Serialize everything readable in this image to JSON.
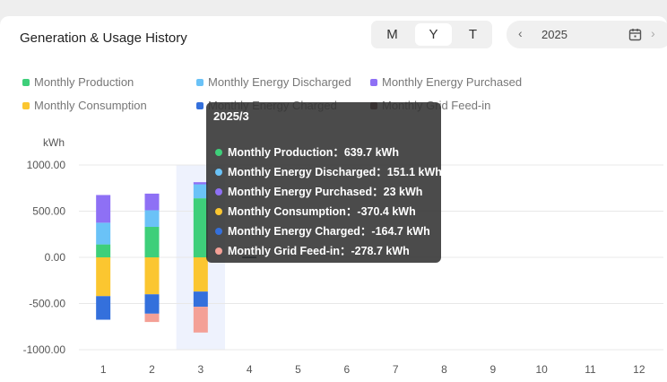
{
  "header": {
    "title": "Generation & Usage History",
    "period_tabs": [
      {
        "label": "M",
        "active": false
      },
      {
        "label": "Y",
        "active": true
      },
      {
        "label": "T",
        "active": false
      }
    ],
    "year": "2025",
    "prev_icon": "chevron-left-icon",
    "next_icon": "chevron-right-icon",
    "calendar_icon": "calendar-icon"
  },
  "colors": {
    "production": "#3ecf7a",
    "discharged": "#6ac2f7",
    "purchased": "#8e70f5",
    "consumption": "#fbc630",
    "charged": "#3470dc",
    "feedin": "#f4a096",
    "feedin_legend": "#5c2c28"
  },
  "tooltip": {
    "title": "2025/3",
    "rows": [
      {
        "label": "Monthly Production：639.7 kWh",
        "color": "#3ecf7a"
      },
      {
        "label": "Monthly Energy Discharged：151.1 kWh",
        "color": "#6ac2f7"
      },
      {
        "label": "Monthly Energy Purchased：23 kWh",
        "color": "#8e70f5"
      },
      {
        "label": "Monthly Consumption：-370.4 kWh",
        "color": "#fbc630"
      },
      {
        "label": "Monthly Energy Charged：-164.7 kWh",
        "color": "#3470dc"
      },
      {
        "label": "Monthly Grid Feed-in：-278.7 kWh",
        "color": "#f4a096"
      }
    ]
  },
  "chart_data": {
    "type": "bar",
    "stacked": true,
    "ylabel": "kWh",
    "ylim": [
      -1000,
      1000
    ],
    "yticks": [
      "1000.00",
      "500.00",
      "0.00",
      "-500.00",
      "-1000.00"
    ],
    "ytick_values": [
      1000,
      500,
      0,
      -500,
      -1000
    ],
    "categories": [
      "1",
      "2",
      "3",
      "4",
      "5",
      "6",
      "7",
      "8",
      "9",
      "10",
      "11",
      "12"
    ],
    "highlighted_category": "3",
    "legend_position": "top",
    "series": [
      {
        "name": "Monthly Production",
        "key": "production",
        "values": [
          140,
          330,
          639.7,
          0,
          0,
          0,
          0,
          0,
          0,
          0,
          0,
          0
        ]
      },
      {
        "name": "Monthly Energy Discharged",
        "key": "discharged",
        "values": [
          235,
          180,
          151.1,
          0,
          0,
          0,
          0,
          0,
          0,
          0,
          0,
          0
        ]
      },
      {
        "name": "Monthly Energy Purchased",
        "key": "purchased",
        "values": [
          300,
          180,
          23,
          0,
          0,
          0,
          0,
          0,
          0,
          0,
          0,
          0
        ]
      },
      {
        "name": "Monthly Consumption",
        "key": "consumption",
        "values": [
          -420,
          -400,
          -370.4,
          0,
          0,
          0,
          0,
          0,
          0,
          0,
          0,
          0
        ]
      },
      {
        "name": "Monthly Energy Charged",
        "key": "charged",
        "values": [
          -255,
          -210,
          -164.7,
          0,
          0,
          0,
          0,
          0,
          0,
          0,
          0,
          0
        ]
      },
      {
        "name": "Monthly Grid Feed-in",
        "key": "feedin",
        "values": [
          0,
          -90,
          -278.7,
          0,
          0,
          0,
          0,
          0,
          0,
          0,
          0,
          0
        ]
      }
    ]
  }
}
